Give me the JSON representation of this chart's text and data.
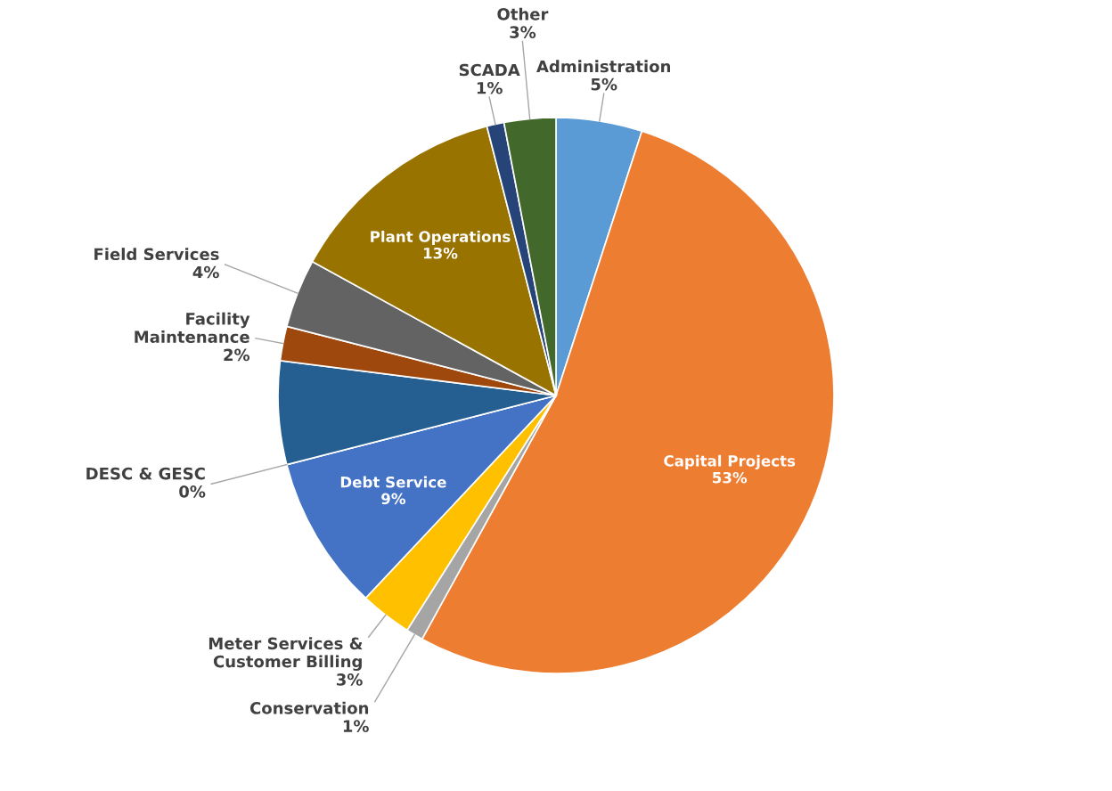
{
  "chart_data": {
    "type": "pie",
    "categories": [
      "Administration",
      "Capital Projects",
      "Conservation",
      "Meter Services &\nCustomer Billing",
      "Debt Service",
      "DESC & GESC",
      null,
      "Facility\nMaintenance",
      "Field Services",
      "Plant Operations",
      "SCADA",
      "Other"
    ],
    "values": [
      5,
      53,
      1,
      3,
      9,
      0,
      6,
      2,
      4,
      13,
      1,
      3
    ],
    "value_labels": [
      "5%",
      "53%",
      "1%",
      "3%",
      "9%",
      "0%",
      null,
      "2%",
      "4%",
      "13%",
      "1%",
      "3%"
    ],
    "colors": [
      "#5b9bd5",
      "#ed7d31",
      "#a5a5a5",
      "#ffc000",
      "#4472c4",
      "#70ad47",
      "#255e91",
      "#9e480e",
      "#636363",
      "#997300",
      "#264478",
      "#43682b"
    ]
  }
}
